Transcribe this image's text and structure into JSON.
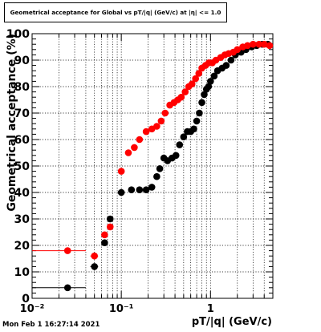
{
  "title": "Geometrical acceptance for Global vs pT/|q| (GeV/c) at |η| <= 1.0",
  "timestamp": "Mon Feb  1 16:27:14 2021",
  "chart_data": {
    "type": "scatter",
    "xlabel": "pT/|q| (GeV/c)",
    "ylabel": "Geometrical acceptance (%)",
    "xscale": "log",
    "xlim": [
      0.01,
      5
    ],
    "ylim": [
      0,
      100
    ],
    "x_tick_labels": [
      "10⁻²",
      "10⁻¹",
      "1"
    ],
    "y_tick_labels": [
      "0",
      "10",
      "20",
      "30",
      "40",
      "50",
      "60",
      "70",
      "80",
      "90",
      "100"
    ],
    "grid": true,
    "series": [
      {
        "color": "#000000",
        "points": [
          {
            "x": 0.025,
            "y": 4,
            "xlow": 0.01,
            "xhigh": 0.04
          },
          {
            "x": 0.05,
            "y": 12,
            "xlow": 0.045,
            "xhigh": 0.055
          },
          {
            "x": 0.065,
            "y": 21
          },
          {
            "x": 0.075,
            "y": 30
          },
          {
            "x": 0.1,
            "y": 40
          },
          {
            "x": 0.13,
            "y": 41
          },
          {
            "x": 0.16,
            "y": 41
          },
          {
            "x": 0.19,
            "y": 41
          },
          {
            "x": 0.22,
            "y": 42
          },
          {
            "x": 0.25,
            "y": 46
          },
          {
            "x": 0.27,
            "y": 49
          },
          {
            "x": 0.3,
            "y": 53
          },
          {
            "x": 0.33,
            "y": 52
          },
          {
            "x": 0.37,
            "y": 53
          },
          {
            "x": 0.41,
            "y": 54
          },
          {
            "x": 0.45,
            "y": 58
          },
          {
            "x": 0.5,
            "y": 61
          },
          {
            "x": 0.55,
            "y": 63
          },
          {
            "x": 0.6,
            "y": 63
          },
          {
            "x": 0.65,
            "y": 64
          },
          {
            "x": 0.7,
            "y": 67
          },
          {
            "x": 0.75,
            "y": 70
          },
          {
            "x": 0.8,
            "y": 74
          },
          {
            "x": 0.85,
            "y": 77
          },
          {
            "x": 0.9,
            "y": 79
          },
          {
            "x": 0.95,
            "y": 80
          },
          {
            "x": 1.0,
            "y": 82
          },
          {
            "x": 1.1,
            "y": 84
          },
          {
            "x": 1.2,
            "y": 86
          },
          {
            "x": 1.35,
            "y": 87
          },
          {
            "x": 1.5,
            "y": 88
          },
          {
            "x": 1.7,
            "y": 90
          },
          {
            "x": 1.9,
            "y": 92
          },
          {
            "x": 2.2,
            "y": 93
          },
          {
            "x": 2.5,
            "y": 94
          },
          {
            "x": 2.9,
            "y": 95
          },
          {
            "x": 3.3,
            "y": 95.5
          },
          {
            "x": 3.8,
            "y": 96
          },
          {
            "x": 4.4,
            "y": 96
          }
        ]
      },
      {
        "color": "#ff0000",
        "points": [
          {
            "x": 0.025,
            "y": 18,
            "xlow": 0.01,
            "xhigh": 0.04
          },
          {
            "x": 0.05,
            "y": 16,
            "xlow": 0.045,
            "xhigh": 0.055
          },
          {
            "x": 0.065,
            "y": 24
          },
          {
            "x": 0.075,
            "y": 27
          },
          {
            "x": 0.1,
            "y": 48
          },
          {
            "x": 0.12,
            "y": 55
          },
          {
            "x": 0.14,
            "y": 57
          },
          {
            "x": 0.16,
            "y": 60
          },
          {
            "x": 0.19,
            "y": 63
          },
          {
            "x": 0.22,
            "y": 64
          },
          {
            "x": 0.25,
            "y": 65
          },
          {
            "x": 0.28,
            "y": 67
          },
          {
            "x": 0.31,
            "y": 70
          },
          {
            "x": 0.35,
            "y": 73
          },
          {
            "x": 0.39,
            "y": 74
          },
          {
            "x": 0.43,
            "y": 75
          },
          {
            "x": 0.47,
            "y": 76
          },
          {
            "x": 0.52,
            "y": 78
          },
          {
            "x": 0.57,
            "y": 80
          },
          {
            "x": 0.62,
            "y": 81
          },
          {
            "x": 0.68,
            "y": 83
          },
          {
            "x": 0.74,
            "y": 85
          },
          {
            "x": 0.8,
            "y": 87
          },
          {
            "x": 0.88,
            "y": 88
          },
          {
            "x": 0.96,
            "y": 89
          },
          {
            "x": 1.05,
            "y": 89
          },
          {
            "x": 1.15,
            "y": 90
          },
          {
            "x": 1.3,
            "y": 91
          },
          {
            "x": 1.45,
            "y": 92
          },
          {
            "x": 1.6,
            "y": 92.5
          },
          {
            "x": 1.8,
            "y": 93
          },
          {
            "x": 2.0,
            "y": 94
          },
          {
            "x": 2.3,
            "y": 95
          },
          {
            "x": 2.6,
            "y": 95.5
          },
          {
            "x": 3.0,
            "y": 96
          },
          {
            "x": 3.5,
            "y": 96
          },
          {
            "x": 4.0,
            "y": 96
          },
          {
            "x": 4.6,
            "y": 95.5
          }
        ]
      }
    ]
  }
}
